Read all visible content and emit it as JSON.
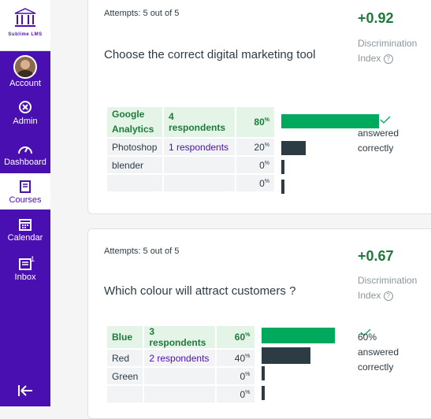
{
  "sidebar": {
    "logo_text": "Sublime LMS",
    "items": [
      {
        "label": "Account"
      },
      {
        "label": "Admin"
      },
      {
        "label": "Dashboard"
      },
      {
        "label": "Courses"
      },
      {
        "label": "Calendar"
      },
      {
        "label": "Inbox",
        "badge": "1"
      }
    ]
  },
  "questions": [
    {
      "attempts": "Attempts: 5 out of 5",
      "text": "Choose the correct digital marketing tool",
      "score": "+0.92",
      "discrimination": "Discrimination Index",
      "answers": [
        {
          "label": "Google Analytics",
          "respondents": "4 respondents",
          "pct": "80",
          "fraction": 0.8,
          "correct": true
        },
        {
          "label": "Photoshop",
          "respondents": "1 respondents",
          "pct": "20",
          "fraction": 0.2,
          "correct": false
        },
        {
          "label": "blender",
          "respondents": "",
          "pct": "0",
          "fraction": 0,
          "correct": false
        },
        {
          "label": "",
          "respondents": "",
          "pct": "0",
          "fraction": 0,
          "correct": false
        }
      ],
      "correct_note": "answered correctly"
    },
    {
      "attempts": "Attempts: 5 out of 5",
      "text": "Which colour will attract customers ?",
      "score": "+0.67",
      "discrimination": "Discrimination Index",
      "answers": [
        {
          "label": "Blue",
          "respondents": "3 respondents",
          "pct": "60",
          "fraction": 0.6,
          "correct": true
        },
        {
          "label": "Red",
          "respondents": "2 respondents",
          "pct": "40",
          "fraction": 0.4,
          "correct": false
        },
        {
          "label": "Green",
          "respondents": "",
          "pct": "0",
          "fraction": 0,
          "correct": false
        },
        {
          "label": "",
          "respondents": "",
          "pct": "0",
          "fraction": 0,
          "correct": false
        }
      ],
      "correct_pct": "60%",
      "correct_note": "answered correctly"
    }
  ],
  "colors": {
    "brand": "#4a0fb0",
    "correct": "#00a95c",
    "bar": "#2d3b45",
    "score": "#1e7a3a"
  },
  "icons": [
    "logo-icon",
    "avatar",
    "admin-icon",
    "dashboard-icon",
    "courses-icon",
    "calendar-icon",
    "inbox-icon",
    "collapse-icon",
    "help-icon",
    "check-icon"
  ],
  "percent_sign": "%"
}
